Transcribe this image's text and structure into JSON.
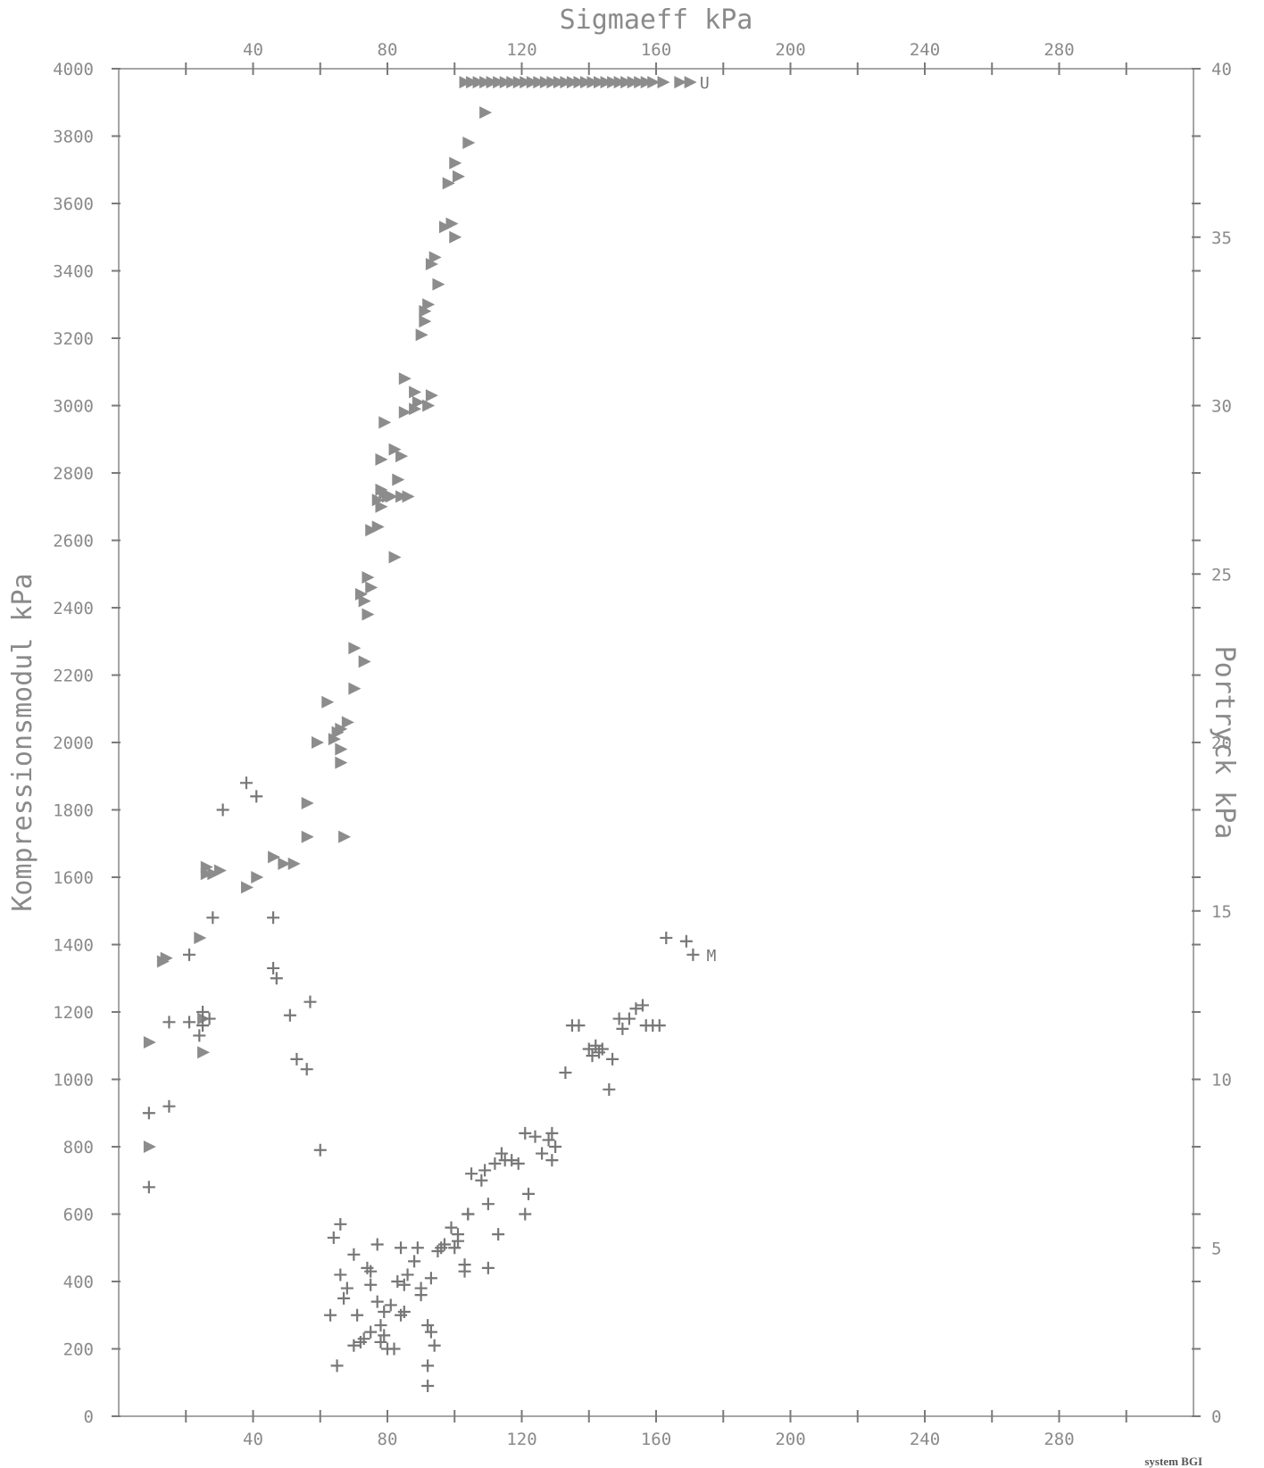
{
  "footer": "system BGI",
  "chart_data": {
    "type": "scatter",
    "title": "Sigmaeff kPa",
    "xlabel": "Sigmaeff kPa",
    "ylabel": "Kompressionsmodul kPa",
    "y2label": "Portryck kPa",
    "xlim": [
      0,
      320
    ],
    "ylim": [
      0,
      4000
    ],
    "y2lim": [
      0,
      40
    ],
    "xticks": [
      20,
      40,
      60,
      80,
      100,
      120,
      140,
      160,
      180,
      200,
      220,
      240,
      260,
      280,
      300
    ],
    "xticklabels": [
      "40",
      "80",
      "120",
      "160",
      "200",
      "240",
      "280"
    ],
    "xticklabel_values": [
      40,
      80,
      120,
      160,
      200,
      240,
      280
    ],
    "yticks": [
      0,
      200,
      400,
      600,
      800,
      1000,
      1200,
      1400,
      1600,
      1800,
      2000,
      2200,
      2400,
      2600,
      2800,
      3000,
      3200,
      3400,
      3600,
      3800,
      4000
    ],
    "yticklabels": [
      "0",
      "200",
      "400",
      "600",
      "800",
      "1000",
      "1200",
      "1400",
      "1600",
      "1800",
      "2000",
      "2200",
      "2400",
      "2600",
      "2800",
      "3000",
      "3200",
      "3400",
      "3600",
      "3800",
      "4000"
    ],
    "y2ticks": [
      0,
      2,
      4,
      5,
      6,
      8,
      10,
      12,
      14,
      15,
      16,
      18,
      20,
      22,
      24,
      25,
      26,
      28,
      30,
      32,
      34,
      35,
      36,
      38,
      40
    ],
    "y2ticklabels": [
      "0",
      "5",
      "10",
      "15",
      "20",
      "25",
      "30",
      "35",
      "40"
    ],
    "y2ticklabel_values": [
      0,
      5,
      10,
      15,
      20,
      25,
      30,
      35,
      40
    ],
    "series": [
      {
        "name": "U",
        "marker": "triangle",
        "color": "#8c8c8c",
        "points": [
          [
            9,
            1110
          ],
          [
            9,
            800
          ],
          [
            13,
            1350
          ],
          [
            14,
            1360
          ],
          [
            24,
            1420
          ],
          [
            25,
            1080
          ],
          [
            25,
            1180
          ],
          [
            26,
            1630
          ],
          [
            26,
            1610
          ],
          [
            28,
            1610
          ],
          [
            30,
            1620
          ],
          [
            38,
            1570
          ],
          [
            41,
            1600
          ],
          [
            46,
            1660
          ],
          [
            49,
            1640
          ],
          [
            52,
            1640
          ],
          [
            56,
            1720
          ],
          [
            56,
            1820
          ],
          [
            59,
            2000
          ],
          [
            62,
            2120
          ],
          [
            64,
            2010
          ],
          [
            65,
            2030
          ],
          [
            66,
            1940
          ],
          [
            66,
            1980
          ],
          [
            66,
            2040
          ],
          [
            67,
            1720
          ],
          [
            68,
            2060
          ],
          [
            70,
            2160
          ],
          [
            70,
            2280
          ],
          [
            72,
            2440
          ],
          [
            73,
            2420
          ],
          [
            73,
            2240
          ],
          [
            74,
            2380
          ],
          [
            74,
            2490
          ],
          [
            75,
            2460
          ],
          [
            75,
            2630
          ],
          [
            77,
            2640
          ],
          [
            77,
            2720
          ],
          [
            78,
            2700
          ],
          [
            78,
            2750
          ],
          [
            78,
            2840
          ],
          [
            79,
            2950
          ],
          [
            79,
            2740
          ],
          [
            80,
            2730
          ],
          [
            81,
            2730
          ],
          [
            82,
            2550
          ],
          [
            82,
            2870
          ],
          [
            83,
            2780
          ],
          [
            84,
            2850
          ],
          [
            84,
            2730
          ],
          [
            85,
            2980
          ],
          [
            85,
            3080
          ],
          [
            86,
            2730
          ],
          [
            88,
            2990
          ],
          [
            88,
            3040
          ],
          [
            89,
            3010
          ],
          [
            90,
            3210
          ],
          [
            91,
            3280
          ],
          [
            91,
            3250
          ],
          [
            92,
            3300
          ],
          [
            92,
            3000
          ],
          [
            93,
            3030
          ],
          [
            93,
            3420
          ],
          [
            94,
            3440
          ],
          [
            95,
            3360
          ],
          [
            97,
            3530
          ],
          [
            98,
            3660
          ],
          [
            99,
            3540
          ],
          [
            100,
            3500
          ],
          [
            100,
            3720
          ],
          [
            101,
            3680
          ],
          [
            104,
            3780
          ],
          [
            109,
            3870
          ],
          [
            103,
            3960
          ],
          [
            105,
            3960
          ],
          [
            107,
            3960
          ],
          [
            109,
            3960
          ],
          [
            111,
            3960
          ],
          [
            113,
            3960
          ],
          [
            115,
            3960
          ],
          [
            117,
            3960
          ],
          [
            119,
            3960
          ],
          [
            121,
            3960
          ],
          [
            123,
            3960
          ],
          [
            125,
            3960
          ],
          [
            127,
            3960
          ],
          [
            129,
            3960
          ],
          [
            131,
            3960
          ],
          [
            133,
            3960
          ],
          [
            135,
            3960
          ],
          [
            137,
            3960
          ],
          [
            139,
            3960
          ],
          [
            141,
            3960
          ],
          [
            143,
            3960
          ],
          [
            145,
            3960
          ],
          [
            147,
            3960
          ],
          [
            149,
            3960
          ],
          [
            151,
            3960
          ],
          [
            153,
            3960
          ],
          [
            155,
            3960
          ],
          [
            157,
            3960
          ],
          [
            159,
            3960
          ],
          [
            162,
            3960
          ],
          [
            167,
            3960
          ],
          [
            170,
            3960
          ]
        ]
      },
      {
        "name": "M",
        "marker": "plus",
        "color": "#777777",
        "points": [
          [
            9,
            900
          ],
          [
            9,
            680
          ],
          [
            15,
            920
          ],
          [
            15,
            1170
          ],
          [
            21,
            1370
          ],
          [
            21,
            1170
          ],
          [
            24,
            1130
          ],
          [
            25,
            1160
          ],
          [
            25,
            1200
          ],
          [
            27,
            1180
          ],
          [
            28,
            1480
          ],
          [
            31,
            1800
          ],
          [
            38,
            1880
          ],
          [
            41,
            1840
          ],
          [
            46,
            1480
          ],
          [
            46,
            1330
          ],
          [
            47,
            1300
          ],
          [
            51,
            1190
          ],
          [
            53,
            1060
          ],
          [
            56,
            1030
          ],
          [
            57,
            1230
          ],
          [
            60,
            790
          ],
          [
            63,
            300
          ],
          [
            64,
            530
          ],
          [
            65,
            150
          ],
          [
            66,
            570
          ],
          [
            66,
            420
          ],
          [
            67,
            350
          ],
          [
            68,
            380
          ],
          [
            70,
            210
          ],
          [
            70,
            480
          ],
          [
            71,
            300
          ],
          [
            72,
            220
          ],
          [
            73,
            230
          ],
          [
            74,
            440
          ],
          [
            75,
            250
          ],
          [
            75,
            390
          ],
          [
            75,
            430
          ],
          [
            77,
            510
          ],
          [
            77,
            340
          ],
          [
            78,
            270
          ],
          [
            78,
            220
          ],
          [
            79,
            240
          ],
          [
            79,
            310
          ],
          [
            80,
            200
          ],
          [
            81,
            330
          ],
          [
            82,
            200
          ],
          [
            83,
            400
          ],
          [
            84,
            300
          ],
          [
            84,
            500
          ],
          [
            85,
            310
          ],
          [
            85,
            390
          ],
          [
            86,
            420
          ],
          [
            88,
            460
          ],
          [
            89,
            500
          ],
          [
            90,
            380
          ],
          [
            90,
            360
          ],
          [
            92,
            90
          ],
          [
            92,
            150
          ],
          [
            92,
            270
          ],
          [
            93,
            410
          ],
          [
            93,
            250
          ],
          [
            94,
            210
          ],
          [
            95,
            490
          ],
          [
            96,
            500
          ],
          [
            97,
            510
          ],
          [
            99,
            560
          ],
          [
            100,
            500
          ],
          [
            101,
            540
          ],
          [
            101,
            520
          ],
          [
            103,
            450
          ],
          [
            103,
            430
          ],
          [
            104,
            600
          ],
          [
            104,
            600
          ],
          [
            105,
            720
          ],
          [
            108,
            700
          ],
          [
            109,
            730
          ],
          [
            110,
            440
          ],
          [
            110,
            630
          ],
          [
            112,
            750
          ],
          [
            113,
            540
          ],
          [
            114,
            780
          ],
          [
            115,
            760
          ],
          [
            117,
            760
          ],
          [
            119,
            750
          ],
          [
            121,
            840
          ],
          [
            121,
            600
          ],
          [
            122,
            660
          ],
          [
            124,
            830
          ],
          [
            126,
            780
          ],
          [
            128,
            820
          ],
          [
            129,
            840
          ],
          [
            129,
            760
          ],
          [
            130,
            800
          ],
          [
            133,
            1020
          ],
          [
            135,
            1160
          ],
          [
            137,
            1160
          ],
          [
            140,
            1090
          ],
          [
            141,
            1070
          ],
          [
            142,
            1100
          ],
          [
            143,
            1080
          ],
          [
            144,
            1090
          ],
          [
            146,
            970
          ],
          [
            147,
            1060
          ],
          [
            149,
            1180
          ],
          [
            150,
            1150
          ],
          [
            152,
            1180
          ],
          [
            154,
            1210
          ],
          [
            156,
            1220
          ],
          [
            157,
            1160
          ],
          [
            159,
            1160
          ],
          [
            161,
            1160
          ],
          [
            163,
            1420
          ],
          [
            169,
            1410
          ],
          [
            171,
            1370
          ]
        ]
      }
    ],
    "series_labels": [
      {
        "text": "U",
        "x": 173,
        "y": 3960
      },
      {
        "text": "M",
        "x": 175,
        "y": 1370
      }
    ]
  }
}
